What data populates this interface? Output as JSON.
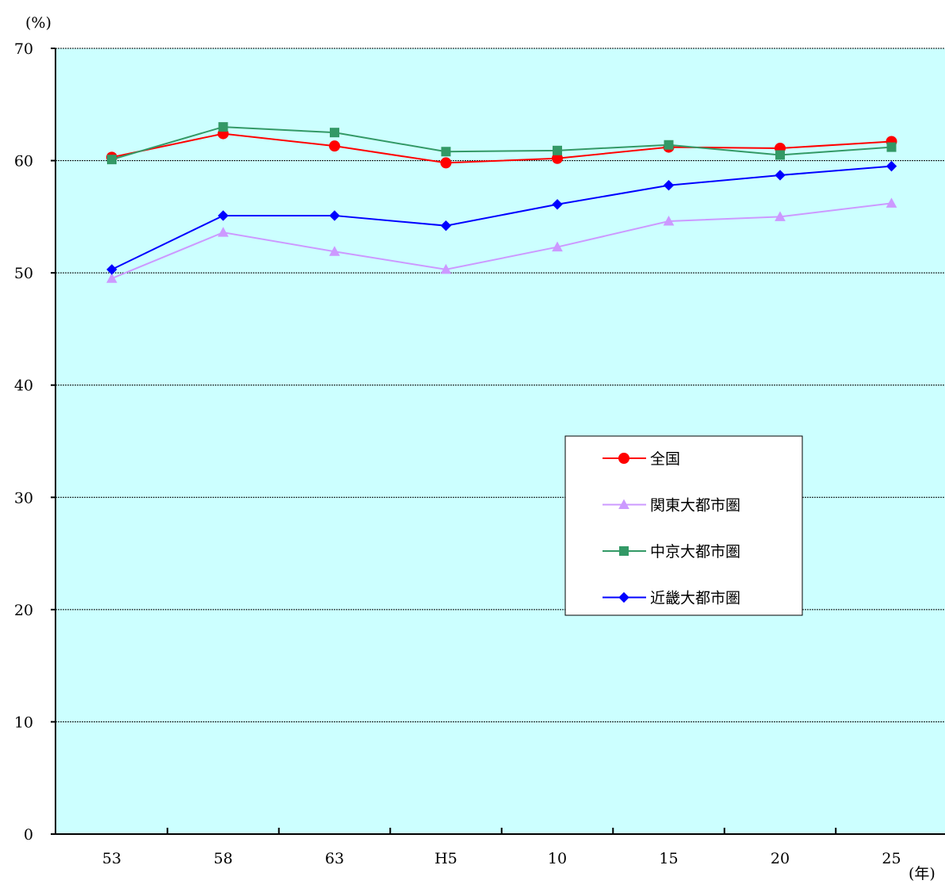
{
  "chart_data": {
    "type": "line",
    "title": "",
    "xlabel": "(年)",
    "ylabel": "(%)",
    "categories": [
      "53",
      "58",
      "63",
      "H5",
      "10",
      "15",
      "20",
      "25"
    ],
    "ylim": [
      0,
      70
    ],
    "yticks": [
      "0",
      "10",
      "20",
      "30",
      "40",
      "50",
      "60",
      "70"
    ],
    "grid": "horizontal dotted",
    "legend_position": "right-center",
    "plot_background": "#ccffff",
    "series": [
      {
        "name": "全国",
        "color": "#ff0000",
        "marker": "circle",
        "values": [
          60.3,
          62.4,
          61.3,
          59.8,
          60.2,
          61.2,
          61.1,
          61.7
        ]
      },
      {
        "name": "関東大都市圏",
        "color": "#cc99ff",
        "marker": "triangle",
        "values": [
          49.5,
          53.6,
          51.9,
          50.3,
          52.3,
          54.6,
          55.0,
          56.2
        ]
      },
      {
        "name": "中京大都市圏",
        "color": "#339966",
        "marker": "square",
        "values": [
          60.1,
          63.0,
          62.5,
          60.8,
          60.9,
          61.4,
          60.5,
          61.2
        ]
      },
      {
        "name": "近畿大都市圏",
        "color": "#0000ff",
        "marker": "diamond",
        "values": [
          50.3,
          55.1,
          55.1,
          54.2,
          56.1,
          57.8,
          58.7,
          59.5
        ]
      }
    ]
  }
}
